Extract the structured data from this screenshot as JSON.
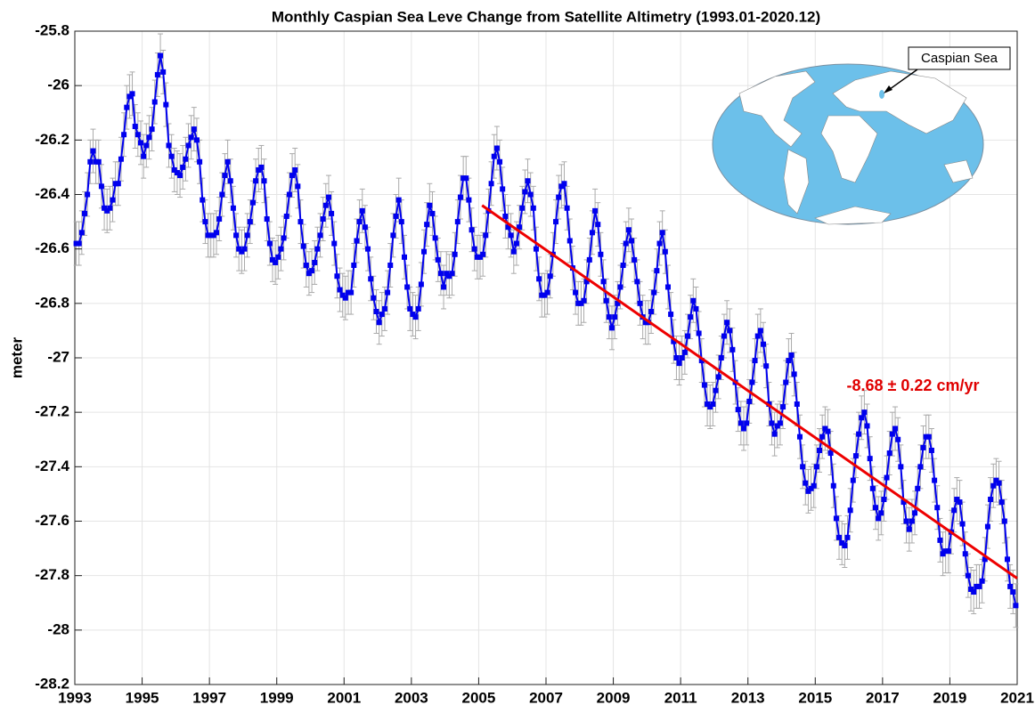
{
  "chart_data": {
    "type": "line",
    "title": "Monthly Caspian Sea Leve Change from Satellite Altimetry (1993.01-2020.12)",
    "y_label": "meter",
    "annotation": "-8.68 ± 0.22 cm/yr",
    "inset_label": "Caspian Sea",
    "xlim": [
      1993,
      2021
    ],
    "xticks": [
      1993,
      1995,
      1997,
      1999,
      2001,
      2003,
      2005,
      2007,
      2009,
      2011,
      2013,
      2015,
      2017,
      2019,
      2021
    ],
    "ylim": [
      -28.2,
      -25.8
    ],
    "yticks": [
      -25.8,
      -26,
      -26.2,
      -26.4,
      -26.6,
      -26.8,
      -27,
      -27.2,
      -27.4,
      -27.6,
      -27.8,
      -28,
      -28.2
    ],
    "grid": true,
    "x": [
      1993.042,
      1993.125,
      1993.208,
      1993.292,
      1993.375,
      1993.458,
      1993.542,
      1993.625,
      1993.708,
      1993.792,
      1993.875,
      1993.958,
      1994.042,
      1994.125,
      1994.208,
      1994.292,
      1994.375,
      1994.458,
      1994.542,
      1994.625,
      1994.708,
      1994.792,
      1994.875,
      1994.958,
      1995.042,
      1995.125,
      1995.208,
      1995.292,
      1995.375,
      1995.458,
      1995.542,
      1995.625,
      1995.708,
      1995.792,
      1995.875,
      1995.958,
      1996.042,
      1996.125,
      1996.208,
      1996.292,
      1996.375,
      1996.458,
      1996.542,
      1996.625,
      1996.708,
      1996.792,
      1996.875,
      1996.958,
      1997.042,
      1997.125,
      1997.208,
      1997.292,
      1997.375,
      1997.458,
      1997.542,
      1997.625,
      1997.708,
      1997.792,
      1997.875,
      1997.958,
      1998.042,
      1998.125,
      1998.208,
      1998.292,
      1998.375,
      1998.458,
      1998.542,
      1998.625,
      1998.708,
      1998.792,
      1998.875,
      1998.958,
      1999.042,
      1999.125,
      1999.208,
      1999.292,
      1999.375,
      1999.458,
      1999.542,
      1999.625,
      1999.708,
      1999.792,
      1999.875,
      1999.958,
      2000.042,
      2000.125,
      2000.208,
      2000.292,
      2000.375,
      2000.458,
      2000.542,
      2000.625,
      2000.708,
      2000.792,
      2000.875,
      2000.958,
      2001.042,
      2001.125,
      2001.208,
      2001.292,
      2001.375,
      2001.458,
      2001.542,
      2001.625,
      2001.708,
      2001.792,
      2001.875,
      2001.958,
      2002.042,
      2002.125,
      2002.208,
      2002.292,
      2002.375,
      2002.458,
      2002.542,
      2002.625,
      2002.708,
      2002.792,
      2002.875,
      2002.958,
      2003.042,
      2003.125,
      2003.208,
      2003.292,
      2003.375,
      2003.458,
      2003.542,
      2003.625,
      2003.708,
      2003.792,
      2003.875,
      2003.958,
      2004.042,
      2004.125,
      2004.208,
      2004.292,
      2004.375,
      2004.458,
      2004.542,
      2004.625,
      2004.708,
      2004.792,
      2004.875,
      2004.958,
      2005.042,
      2005.125,
      2005.208,
      2005.292,
      2005.375,
      2005.458,
      2005.542,
      2005.625,
      2005.708,
      2005.792,
      2005.875,
      2005.958,
      2006.042,
      2006.125,
      2006.208,
      2006.292,
      2006.375,
      2006.458,
      2006.542,
      2006.625,
      2006.708,
      2006.792,
      2006.875,
      2006.958,
      2007.042,
      2007.125,
      2007.208,
      2007.292,
      2007.375,
      2007.458,
      2007.542,
      2007.625,
      2007.708,
      2007.792,
      2007.875,
      2007.958,
      2008.042,
      2008.125,
      2008.208,
      2008.292,
      2008.375,
      2008.458,
      2008.542,
      2008.625,
      2008.708,
      2008.792,
      2008.875,
      2008.958,
      2009.042,
      2009.125,
      2009.208,
      2009.292,
      2009.375,
      2009.458,
      2009.542,
      2009.625,
      2009.708,
      2009.792,
      2009.875,
      2009.958,
      2010.042,
      2010.125,
      2010.208,
      2010.292,
      2010.375,
      2010.458,
      2010.542,
      2010.625,
      2010.708,
      2010.792,
      2010.875,
      2010.958,
      2011.042,
      2011.125,
      2011.208,
      2011.292,
      2011.375,
      2011.458,
      2011.542,
      2011.625,
      2011.708,
      2011.792,
      2011.875,
      2011.958,
      2012.042,
      2012.125,
      2012.208,
      2012.292,
      2012.375,
      2012.458,
      2012.542,
      2012.625,
      2012.708,
      2012.792,
      2012.875,
      2012.958,
      2013.042,
      2013.125,
      2013.208,
      2013.292,
      2013.375,
      2013.458,
      2013.542,
      2013.625,
      2013.708,
      2013.792,
      2013.875,
      2013.958,
      2014.042,
      2014.125,
      2014.208,
      2014.292,
      2014.375,
      2014.458,
      2014.542,
      2014.625,
      2014.708,
      2014.792,
      2014.875,
      2014.958,
      2015.042,
      2015.125,
      2015.208,
      2015.292,
      2015.375,
      2015.458,
      2015.542,
      2015.625,
      2015.708,
      2015.792,
      2015.875,
      2015.958,
      2016.042,
      2016.125,
      2016.208,
      2016.292,
      2016.375,
      2016.458,
      2016.542,
      2016.625,
      2016.708,
      2016.792,
      2016.875,
      2016.958,
      2017.042,
      2017.125,
      2017.208,
      2017.292,
      2017.375,
      2017.458,
      2017.542,
      2017.625,
      2017.708,
      2017.792,
      2017.875,
      2017.958,
      2018.042,
      2018.125,
      2018.208,
      2018.292,
      2018.375,
      2018.458,
      2018.542,
      2018.625,
      2018.708,
      2018.792,
      2018.875,
      2018.958,
      2019.042,
      2019.125,
      2019.208,
      2019.292,
      2019.375,
      2019.458,
      2019.542,
      2019.625,
      2019.708,
      2019.792,
      2019.875,
      2019.958,
      2020.042,
      2020.125,
      2020.208,
      2020.292,
      2020.375,
      2020.458,
      2020.542,
      2020.625,
      2020.708,
      2020.792,
      2020.875,
      2020.958
    ],
    "series": [
      {
        "color": "#0000ee",
        "error_color": "#aaaaaa",
        "error": 0.08,
        "values": [
          -26.58,
          -26.58,
          -26.54,
          -26.47,
          -26.4,
          -26.28,
          -26.24,
          -26.28,
          -26.28,
          -26.37,
          -26.45,
          -26.46,
          -26.45,
          -26.42,
          -26.36,
          -26.36,
          -26.27,
          -26.18,
          -26.08,
          -26.04,
          -26.03,
          -26.15,
          -26.18,
          -26.21,
          -26.26,
          -26.22,
          -26.19,
          -26.16,
          -26.06,
          -25.96,
          -25.89,
          -25.95,
          -26.07,
          -26.22,
          -26.26,
          -26.31,
          -26.32,
          -26.33,
          -26.3,
          -26.27,
          -26.22,
          -26.19,
          -26.16,
          -26.2,
          -26.28,
          -26.42,
          -26.5,
          -26.55,
          -26.55,
          -26.55,
          -26.54,
          -26.49,
          -26.4,
          -26.33,
          -26.28,
          -26.35,
          -26.45,
          -26.55,
          -26.6,
          -26.61,
          -26.6,
          -26.55,
          -26.5,
          -26.43,
          -26.35,
          -26.31,
          -26.3,
          -26.35,
          -26.49,
          -26.58,
          -26.64,
          -26.65,
          -26.63,
          -26.6,
          -26.56,
          -26.48,
          -26.4,
          -26.33,
          -26.31,
          -26.37,
          -26.5,
          -26.59,
          -26.66,
          -26.69,
          -26.68,
          -26.65,
          -26.6,
          -26.55,
          -26.49,
          -26.44,
          -26.41,
          -26.47,
          -26.58,
          -26.7,
          -26.75,
          -26.77,
          -26.78,
          -26.76,
          -26.76,
          -26.66,
          -26.57,
          -26.5,
          -26.46,
          -26.52,
          -26.6,
          -26.71,
          -26.78,
          -26.83,
          -26.87,
          -26.84,
          -26.82,
          -26.76,
          -26.66,
          -26.55,
          -26.48,
          -26.42,
          -26.5,
          -26.63,
          -26.74,
          -26.82,
          -26.84,
          -26.85,
          -26.82,
          -26.73,
          -26.61,
          -26.51,
          -26.44,
          -26.47,
          -26.56,
          -26.64,
          -26.69,
          -26.74,
          -26.69,
          -26.7,
          -26.69,
          -26.62,
          -26.5,
          -26.41,
          -26.34,
          -26.34,
          -26.42,
          -26.53,
          -26.6,
          -26.63,
          -26.63,
          -26.62,
          -26.55,
          -26.46,
          -26.36,
          -26.26,
          -26.23,
          -26.28,
          -26.38,
          -26.48,
          -26.52,
          -26.55,
          -26.61,
          -26.58,
          -26.52,
          -26.45,
          -26.39,
          -26.35,
          -26.4,
          -26.45,
          -26.6,
          -26.71,
          -26.77,
          -26.77,
          -26.76,
          -26.7,
          -26.62,
          -26.5,
          -26.41,
          -26.37,
          -26.36,
          -26.45,
          -26.57,
          -26.67,
          -26.76,
          -26.8,
          -26.8,
          -26.79,
          -26.72,
          -26.64,
          -26.54,
          -26.46,
          -26.51,
          -26.62,
          -26.72,
          -26.79,
          -26.85,
          -26.89,
          -26.85,
          -26.8,
          -26.74,
          -26.66,
          -26.58,
          -26.53,
          -26.57,
          -26.64,
          -26.72,
          -26.8,
          -26.85,
          -26.87,
          -26.87,
          -26.83,
          -26.76,
          -26.68,
          -26.58,
          -26.54,
          -26.61,
          -26.74,
          -26.84,
          -26.94,
          -27.0,
          -27.02,
          -27.0,
          -26.98,
          -26.92,
          -26.85,
          -26.79,
          -26.82,
          -26.91,
          -27.01,
          -27.1,
          -27.17,
          -27.18,
          -27.17,
          -27.12,
          -27.07,
          -27.0,
          -26.92,
          -26.87,
          -26.9,
          -26.97,
          -27.09,
          -27.19,
          -27.24,
          -27.26,
          -27.24,
          -27.16,
          -27.09,
          -27.01,
          -26.92,
          -26.9,
          -26.95,
          -27.03,
          -27.17,
          -27.24,
          -27.28,
          -27.25,
          -27.24,
          -27.18,
          -27.09,
          -27.01,
          -26.99,
          -27.06,
          -27.17,
          -27.29,
          -27.4,
          -27.46,
          -27.49,
          -27.48,
          -27.47,
          -27.4,
          -27.34,
          -27.29,
          -27.26,
          -27.27,
          -27.35,
          -27.47,
          -27.59,
          -27.66,
          -27.68,
          -27.69,
          -27.66,
          -27.56,
          -27.45,
          -27.36,
          -27.28,
          -27.22,
          -27.2,
          -27.25,
          -27.37,
          -27.48,
          -27.55,
          -27.59,
          -27.57,
          -27.52,
          -27.44,
          -27.35,
          -27.28,
          -27.26,
          -27.3,
          -27.4,
          -27.53,
          -27.6,
          -27.63,
          -27.6,
          -27.57,
          -27.48,
          -27.4,
          -27.33,
          -27.29,
          -27.29,
          -27.34,
          -27.45,
          -27.55,
          -27.67,
          -27.72,
          -27.71,
          -27.71,
          -27.64,
          -27.56,
          -27.52,
          -27.53,
          -27.61,
          -27.72,
          -27.8,
          -27.85,
          -27.86,
          -27.84,
          -27.84,
          -27.82,
          -27.74,
          -27.62,
          -27.52,
          -27.47,
          -27.45,
          -27.46,
          -27.53,
          -27.6,
          -27.74,
          -27.84,
          -27.86,
          -27.91
        ]
      },
      {
        "color": "#ee0000",
        "x": [
          2005.1,
          2021
        ],
        "values": [
          -26.44,
          -27.81
        ]
      }
    ]
  }
}
